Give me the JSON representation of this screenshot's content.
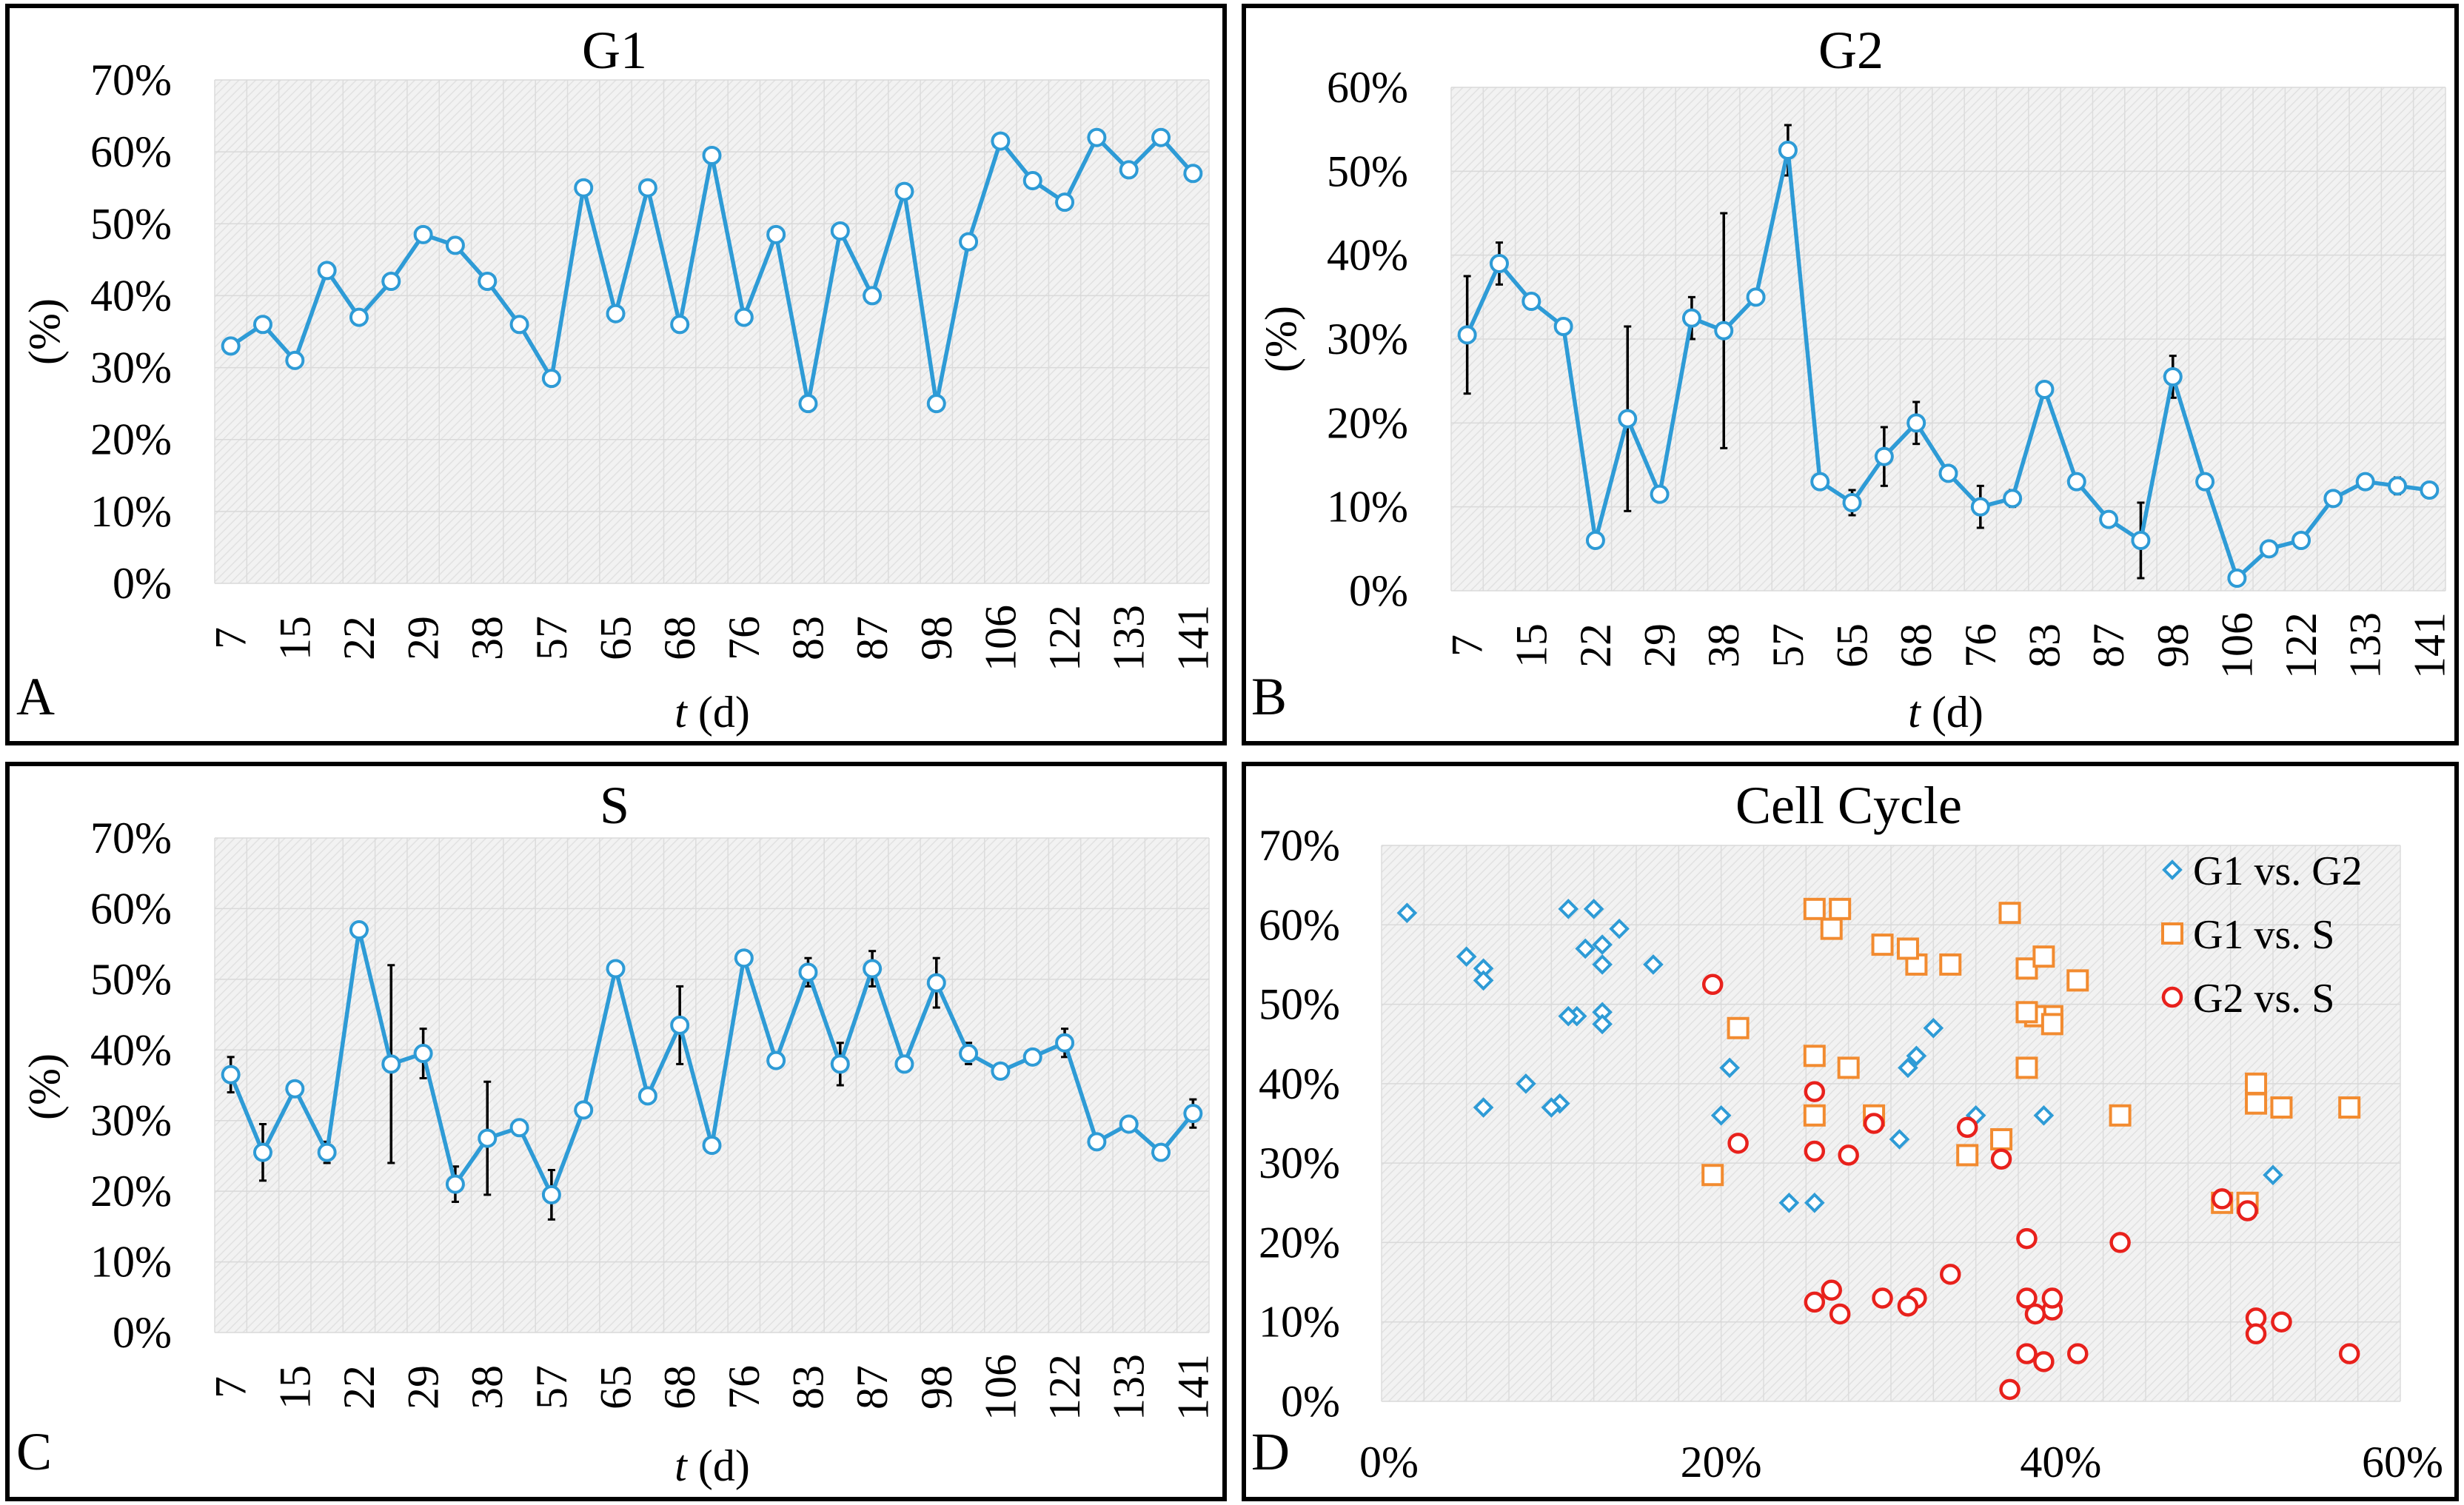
{
  "chart_data": [
    {
      "panel": "A",
      "type": "line",
      "title": "G1",
      "xlabel_italic": "t",
      "xlabel_rest": " (d)",
      "ylabel": "(%)",
      "categories": [
        "7",
        "",
        "15",
        "",
        "22",
        "",
        "29",
        "",
        "38",
        "",
        "57",
        "",
        "65",
        "",
        "68",
        "",
        "76",
        "",
        "83",
        "",
        "87",
        "",
        "98",
        "",
        "106",
        "",
        "122",
        "",
        "133",
        "",
        "141"
      ],
      "x_tick_labels": [
        "7",
        "15",
        "22",
        "29",
        "38",
        "57",
        "65",
        "68",
        "76",
        "83",
        "87",
        "98",
        "106",
        "122",
        "133",
        "141"
      ],
      "ylim": [
        0,
        70
      ],
      "yticks": [
        0,
        10,
        20,
        30,
        40,
        50,
        60,
        70
      ],
      "y_tick_labels": [
        "0%",
        "10%",
        "20%",
        "30%",
        "40%",
        "50%",
        "60%",
        "70%"
      ],
      "values": [
        33,
        36,
        31,
        43.5,
        37,
        42,
        48.5,
        47,
        42,
        36,
        28.5,
        55,
        37.5,
        55,
        36,
        59.5,
        37,
        48.5,
        25,
        49,
        40,
        54.5,
        25,
        47.5,
        61.5,
        56,
        53,
        62,
        57.5,
        62,
        57
      ],
      "errors": [
        0,
        0,
        0,
        0,
        0,
        0,
        0,
        0,
        0,
        0,
        0,
        0,
        0,
        0,
        0,
        0,
        0,
        0,
        0,
        0,
        0,
        0,
        0,
        0,
        0,
        0,
        0,
        0,
        0,
        0,
        0
      ]
    },
    {
      "panel": "B",
      "type": "line",
      "title": "G2",
      "xlabel_italic": "t",
      "xlabel_rest": " (d)",
      "ylabel": "(%)",
      "categories": [
        "7",
        "",
        "15",
        "",
        "22",
        "",
        "29",
        "",
        "38",
        "",
        "57",
        "",
        "65",
        "",
        "68",
        "",
        "76",
        "",
        "83",
        "",
        "87",
        "",
        "98",
        "",
        "106",
        "",
        "122",
        "",
        "133",
        "",
        "141"
      ],
      "x_tick_labels": [
        "7",
        "15",
        "22",
        "29",
        "38",
        "57",
        "65",
        "68",
        "76",
        "83",
        "87",
        "98",
        "106",
        "122",
        "133",
        "141"
      ],
      "ylim": [
        0,
        60
      ],
      "yticks": [
        0,
        10,
        20,
        30,
        40,
        50,
        60
      ],
      "y_tick_labels": [
        "0%",
        "10%",
        "20%",
        "30%",
        "40%",
        "50%",
        "60%"
      ],
      "values": [
        30.5,
        39,
        34.5,
        31.5,
        6,
        20.5,
        11.5,
        32.5,
        31,
        35,
        52.5,
        13,
        10.5,
        16,
        20,
        14,
        10,
        11,
        24,
        13,
        8.5,
        6,
        25.5,
        13,
        1.5,
        5,
        6,
        11,
        13,
        12.5,
        12
      ],
      "errors": [
        7,
        2.5,
        0,
        0,
        0,
        11,
        0,
        2.5,
        14,
        0,
        3,
        0,
        1.5,
        3.5,
        2.5,
        0,
        2.5,
        1,
        0,
        0,
        0,
        4.5,
        2.5,
        0,
        0,
        0,
        0,
        0,
        0,
        1,
        0
      ]
    },
    {
      "panel": "C",
      "type": "line",
      "title": "S",
      "xlabel_italic": "t",
      "xlabel_rest": " (d)",
      "ylabel": "(%)",
      "categories": [
        "7",
        "",
        "15",
        "",
        "22",
        "",
        "29",
        "",
        "38",
        "",
        "57",
        "",
        "65",
        "",
        "68",
        "",
        "76",
        "",
        "83",
        "",
        "87",
        "",
        "98",
        "",
        "106",
        "",
        "122",
        "",
        "133",
        "",
        "141"
      ],
      "x_tick_labels": [
        "7",
        "15",
        "22",
        "29",
        "38",
        "57",
        "65",
        "68",
        "76",
        "83",
        "87",
        "98",
        "106",
        "122",
        "133",
        "141"
      ],
      "ylim": [
        0,
        70
      ],
      "yticks": [
        0,
        10,
        20,
        30,
        40,
        50,
        60,
        70
      ],
      "y_tick_labels": [
        "0%",
        "10%",
        "20%",
        "30%",
        "40%",
        "50%",
        "60%",
        "70%"
      ],
      "values": [
        36.5,
        25.5,
        34.5,
        25.5,
        57,
        38,
        39.5,
        21,
        27.5,
        29,
        19.5,
        31.5,
        51.5,
        33.5,
        43.5,
        26.5,
        53,
        38.5,
        51,
        38,
        51.5,
        38,
        49.5,
        39.5,
        37,
        39,
        41,
        27,
        29.5,
        25.5,
        31
      ],
      "errors": [
        2.5,
        4,
        0,
        1.5,
        0,
        14,
        3.5,
        2.5,
        8,
        0,
        3.5,
        0,
        0,
        0,
        5.5,
        0,
        0,
        0,
        2,
        3,
        2.5,
        0,
        3.5,
        1.5,
        0,
        0,
        2,
        0,
        0,
        0,
        2
      ]
    },
    {
      "panel": "D",
      "type": "scatter",
      "title": "Cell Cycle",
      "xlim": [
        0,
        60
      ],
      "ylim": [
        0,
        70
      ],
      "xticks": [
        0,
        20,
        40,
        60
      ],
      "x_tick_labels": [
        "0%",
        "20%",
        "40%",
        "60%"
      ],
      "yticks": [
        0,
        10,
        20,
        30,
        40,
        50,
        60,
        70
      ],
      "y_tick_labels": [
        "0%",
        "10%",
        "20%",
        "30%",
        "40%",
        "50%",
        "60%",
        "70%"
      ],
      "series": [
        {
          "name": "G1 vs. G2",
          "color": "#2e9bd6",
          "marker": "diamond",
          "x": [
            30.5,
            39,
            34.5,
            31.5,
            6,
            20.5,
            11.5,
            32.5,
            31,
            35,
            52.5,
            13,
            10.5,
            16,
            20,
            14,
            10,
            11,
            24,
            13,
            8.5,
            6,
            25.5,
            13,
            1.5,
            5,
            6,
            11,
            13,
            12.5,
            12
          ],
          "y": [
            33,
            36,
            31,
            43.5,
            37,
            42,
            48.5,
            47,
            42,
            36,
            28.5,
            55,
            37.5,
            55,
            36,
            59.5,
            37,
            48.5,
            25,
            49,
            40,
            54.5,
            25,
            47.5,
            61.5,
            56,
            53,
            62,
            57.5,
            62,
            57
          ]
        },
        {
          "name": "G1 vs. S",
          "color": "#f28b30",
          "marker": "square",
          "x": [
            36.5,
            25.5,
            34.5,
            25.5,
            57,
            38,
            39.5,
            21,
            27.5,
            29,
            19.5,
            31.5,
            51.5,
            33.5,
            43.5,
            26.5,
            53,
            38.5,
            51,
            38,
            51.5,
            38,
            49.5,
            39.5,
            37,
            39,
            41,
            27,
            29.5,
            25.5,
            31
          ],
          "y": [
            33,
            36,
            31,
            43.5,
            37,
            42,
            48.5,
            47,
            42,
            36,
            28.5,
            55,
            37.5,
            55,
            36,
            59.5,
            37,
            48.5,
            25,
            49,
            40,
            54.5,
            25,
            47.5,
            61.5,
            56,
            53,
            62,
            57.5,
            62,
            57
          ]
        },
        {
          "name": "G2 vs. S",
          "color": "#e8211c",
          "marker": "circle",
          "x": [
            36.5,
            25.5,
            34.5,
            25.5,
            57,
            38,
            39.5,
            21,
            27.5,
            29,
            19.5,
            31.5,
            51.5,
            33.5,
            43.5,
            26.5,
            53,
            38.5,
            51,
            38,
            51.5,
            38,
            49.5,
            39.5,
            37,
            39,
            41,
            27,
            29.5,
            25.5,
            31
          ],
          "y": [
            30.5,
            39,
            34.5,
            31.5,
            6,
            20.5,
            11.5,
            32.5,
            31,
            35,
            52.5,
            13,
            10.5,
            16,
            20,
            14,
            10,
            11,
            24,
            13,
            8.5,
            6,
            25.5,
            13,
            1.5,
            5,
            6,
            11,
            13,
            12.5,
            12
          ]
        }
      ]
    }
  ]
}
